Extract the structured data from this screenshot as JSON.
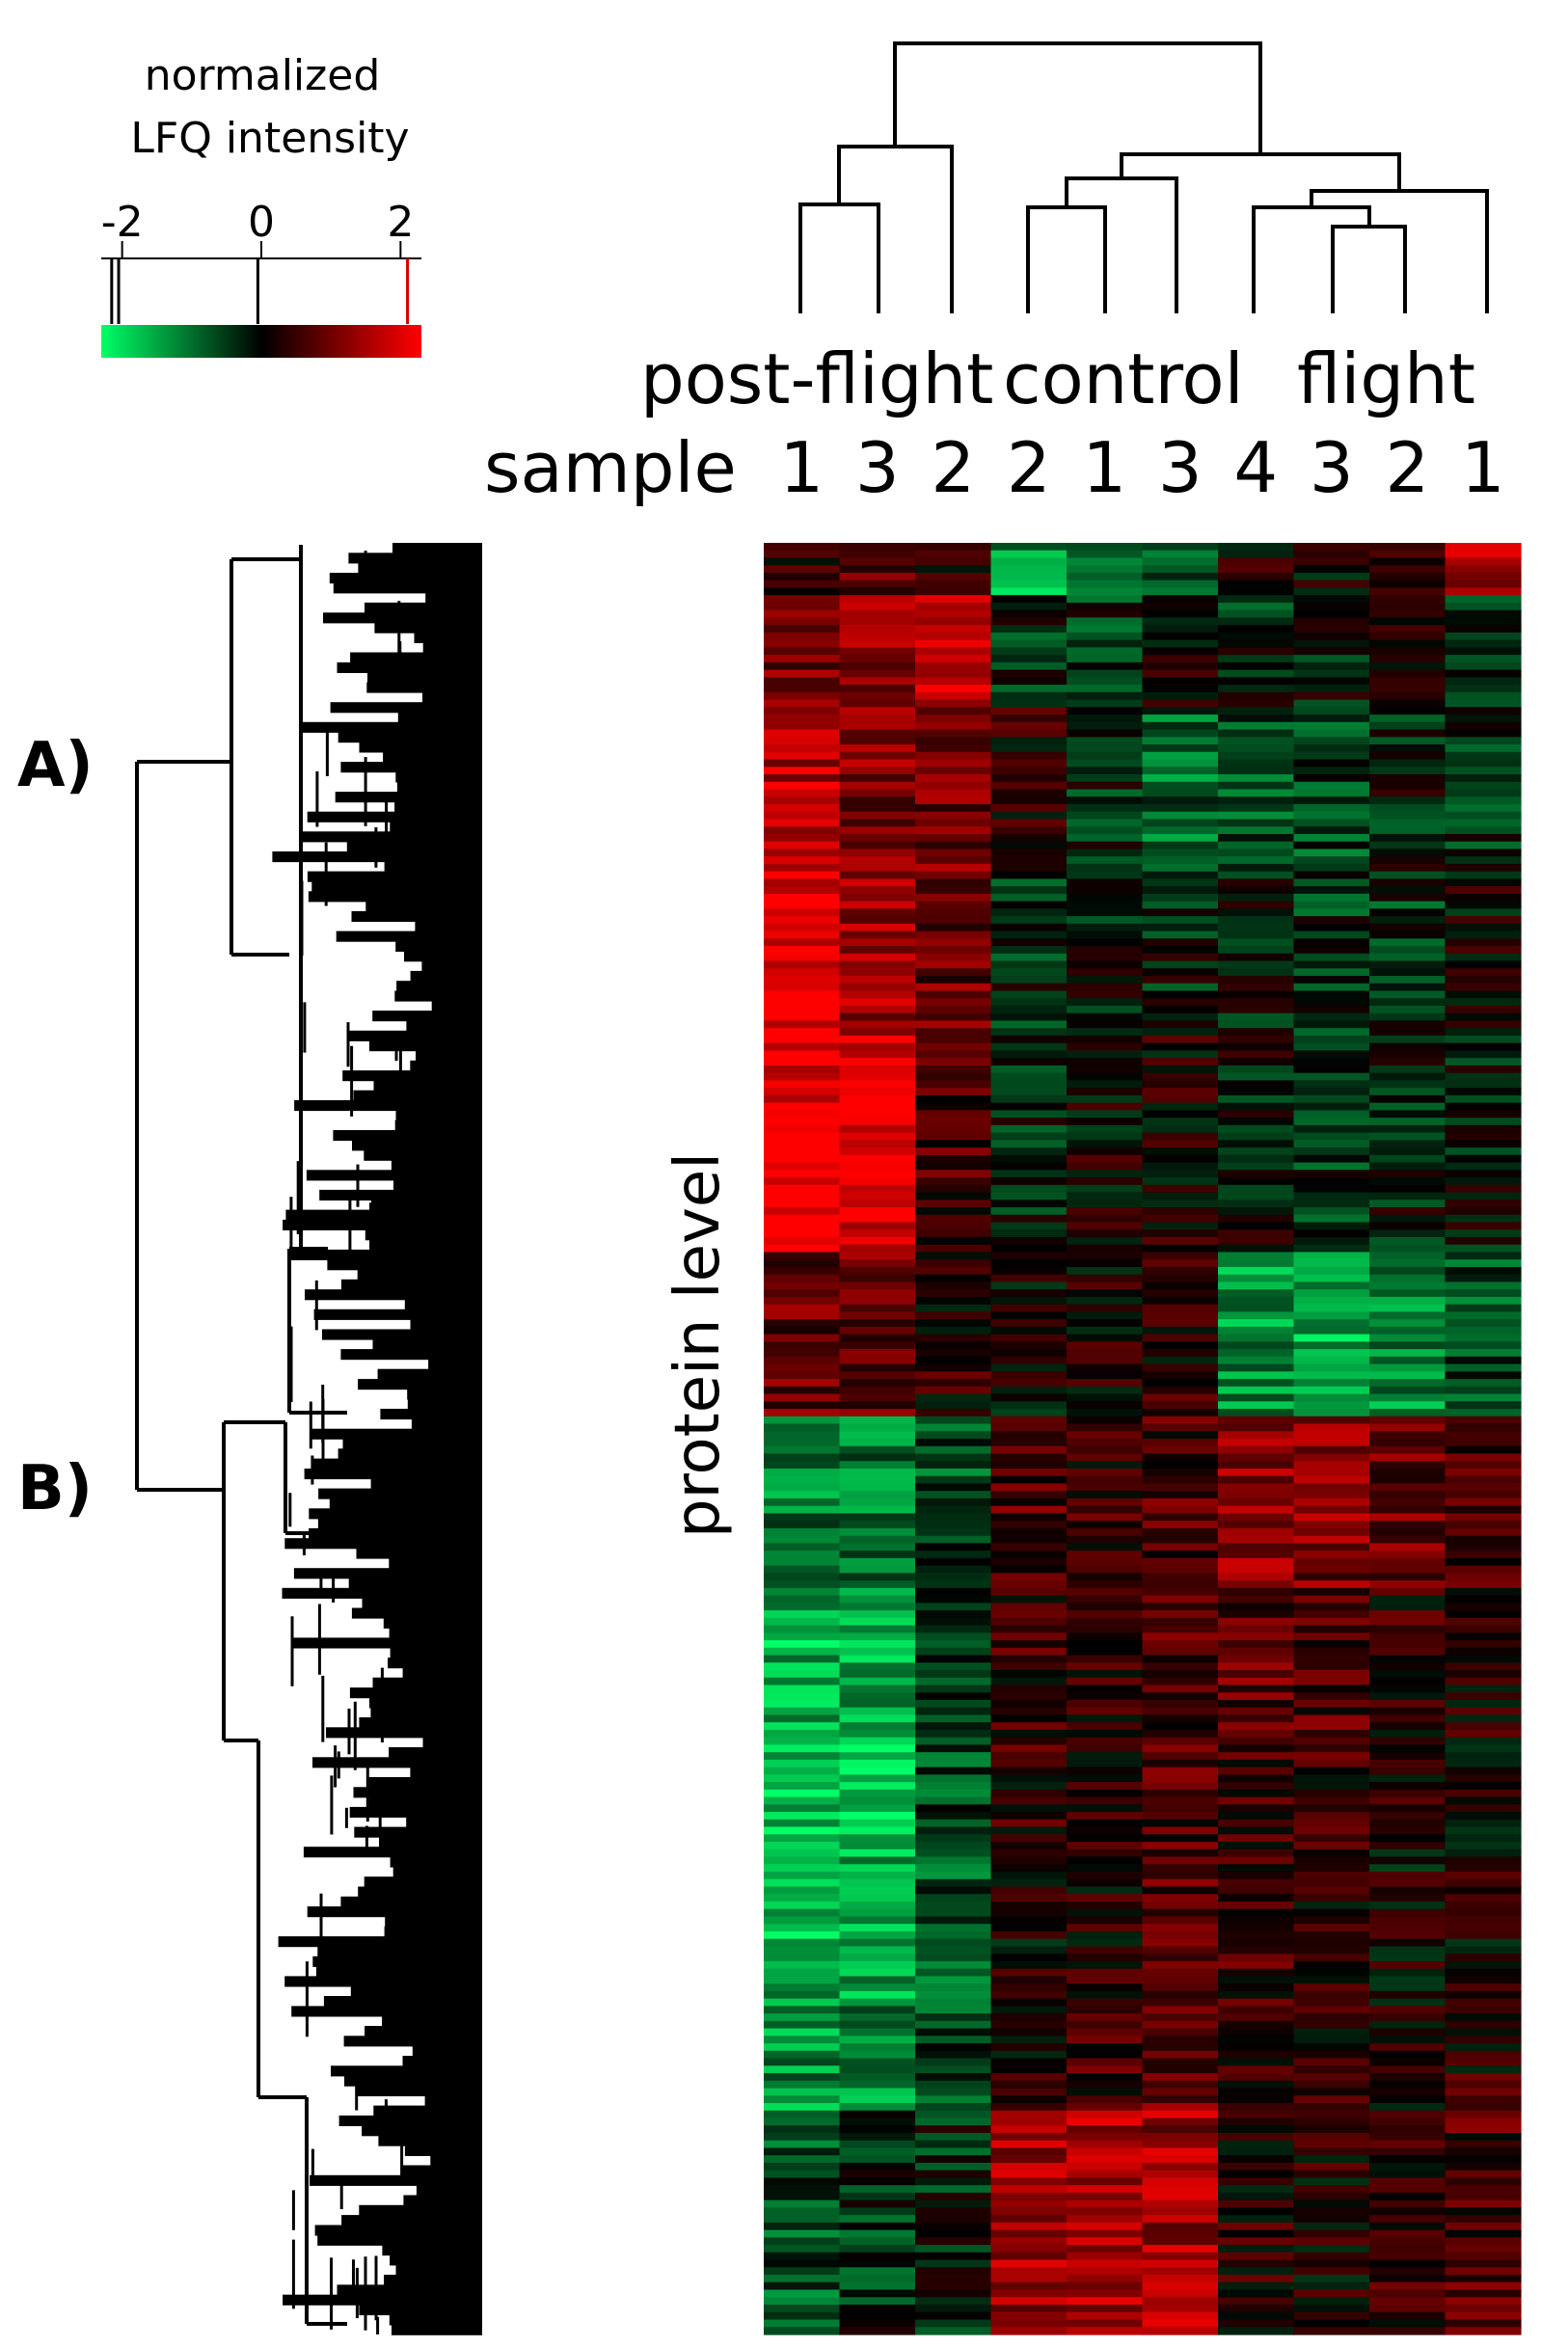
{
  "colorbar": {
    "title_line1": "normalized",
    "title_line2": "LFQ intensity",
    "ticks": [
      -2,
      0,
      2
    ],
    "tick_labels": [
      "-2",
      "0",
      "2"
    ],
    "range": [
      -2.3,
      2.3
    ],
    "color_low": "#00ff66",
    "color_mid": "#000000",
    "color_high": "#ff0000",
    "histogram_markers": [
      -2.15,
      -2.05,
      -0.05,
      2.1
    ]
  },
  "group_labels": [
    {
      "text": "post-flight",
      "group": "post-flight"
    },
    {
      "text": "control",
      "group": "control"
    },
    {
      "text": "flight",
      "group": "flight"
    }
  ],
  "sample_label": "sample",
  "columns": [
    {
      "group": "post-flight",
      "sample": "1"
    },
    {
      "group": "post-flight",
      "sample": "3"
    },
    {
      "group": "post-flight",
      "sample": "2"
    },
    {
      "group": "control",
      "sample": "2"
    },
    {
      "group": "control",
      "sample": "1"
    },
    {
      "group": "control",
      "sample": "3"
    },
    {
      "group": "flight",
      "sample": "4"
    },
    {
      "group": "flight",
      "sample": "3"
    },
    {
      "group": "flight",
      "sample": "2"
    },
    {
      "group": "flight",
      "sample": "1"
    }
  ],
  "row_axis_label": "protein level",
  "cluster_labels": [
    "A)",
    "B)"
  ],
  "chart_data": {
    "type": "heatmap",
    "value_label": "normalized LFQ intensity",
    "columns": [
      "1",
      "3",
      "2",
      "2",
      "1",
      "3",
      "4",
      "3",
      "2",
      "1"
    ],
    "column_groups": [
      "post-flight",
      "post-flight",
      "post-flight",
      "control",
      "control",
      "control",
      "flight",
      "flight",
      "flight",
      "flight"
    ],
    "value_range": [
      -2.3,
      2.3
    ],
    "row_count": 240,
    "row_clusters": [
      {
        "label": "A)",
        "row_start": 0,
        "row_end": 116
      },
      {
        "label": "B)",
        "row_start": 117,
        "row_end": 239
      }
    ],
    "row_blocks": [
      {
        "rows": [
          0,
          6
        ],
        "mean": [
          0.4,
          0.8,
          0.3,
          -1.4,
          -0.9,
          -0.8,
          0.1,
          0.0,
          0.2,
          1.6
        ]
      },
      {
        "rows": [
          7,
          21
        ],
        "mean": [
          1.0,
          1.2,
          1.9,
          -0.3,
          -0.4,
          0.0,
          -0.3,
          -0.1,
          0.2,
          -0.6
        ]
      },
      {
        "rows": [
          22,
          43
        ],
        "mean": [
          1.6,
          1.1,
          1.0,
          0.3,
          -0.3,
          -0.9,
          -0.7,
          -0.6,
          -0.2,
          -0.4
        ]
      },
      {
        "rows": [
          44,
          65
        ],
        "mean": [
          2.0,
          1.4,
          0.9,
          -0.3,
          -0.2,
          -0.2,
          -0.2,
          -0.4,
          -0.4,
          0.1
        ]
      },
      {
        "rows": [
          66,
          94
        ],
        "mean": [
          2.2,
          2.0,
          0.6,
          -0.2,
          0.1,
          0.2,
          -0.1,
          -0.4,
          -0.2,
          -0.1
        ]
      },
      {
        "rows": [
          95,
          116
        ],
        "mean": [
          0.9,
          0.9,
          0.3,
          0.1,
          0.2,
          0.3,
          -1.3,
          -1.6,
          -1.2,
          -0.6
        ]
      },
      {
        "rows": [
          117,
          139
        ],
        "mean": [
          -1.1,
          -1.0,
          -0.7,
          0.7,
          0.4,
          0.6,
          1.3,
          1.1,
          0.9,
          0.7
        ]
      },
      {
        "rows": [
          140,
          158
        ],
        "mean": [
          -1.6,
          -1.4,
          -0.4,
          0.5,
          0.3,
          0.7,
          0.8,
          0.6,
          0.3,
          0.3
        ]
      },
      {
        "rows": [
          159,
          173
        ],
        "mean": [
          -1.8,
          -1.9,
          -0.6,
          0.4,
          0.2,
          0.6,
          0.4,
          0.5,
          0.2,
          0.2
        ]
      },
      {
        "rows": [
          174,
          195
        ],
        "mean": [
          -1.6,
          -1.5,
          -0.7,
          0.1,
          0.3,
          0.7,
          0.5,
          0.3,
          0.1,
          0.2
        ]
      },
      {
        "rows": [
          196,
          209
        ],
        "mean": [
          -1.3,
          -1.2,
          -0.5,
          0.3,
          0.5,
          0.9,
          0.4,
          0.3,
          0.2,
          0.3
        ]
      },
      {
        "rows": [
          210,
          239
        ],
        "mean": [
          -0.7,
          -0.4,
          -0.3,
          1.4,
          1.5,
          1.4,
          0.3,
          0.2,
          0.4,
          0.6
        ]
      }
    ]
  }
}
